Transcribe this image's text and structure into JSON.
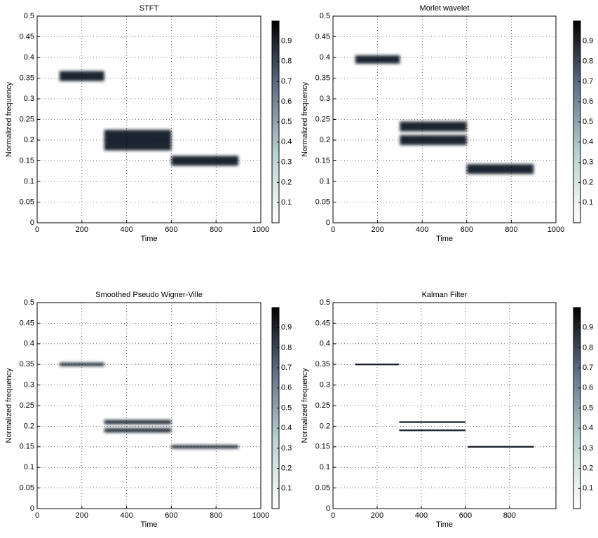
{
  "chart_data": [
    {
      "type": "spectrogram",
      "title": "STFT",
      "xlabel": "Time",
      "ylabel": "Normalized frequency",
      "color": "#1e2530",
      "xlim": [
        0,
        1000
      ],
      "xticks": [
        0,
        200,
        400,
        600,
        800,
        1000
      ],
      "ylim": [
        0,
        0.5
      ],
      "yticks": [
        0,
        0.05,
        0.1,
        0.15,
        0.2,
        0.25,
        0.3,
        0.35,
        0.4,
        0.45,
        0.5
      ],
      "clim": [
        0,
        1
      ],
      "cticks": [
        0.1,
        0.2,
        0.3,
        0.4,
        0.5,
        0.6,
        0.7,
        0.8,
        0.9
      ],
      "grid": true,
      "tracks": [
        {
          "start": 100,
          "end": 300,
          "freq": 0.355,
          "width": 0.012
        },
        {
          "start": 300,
          "end": 600,
          "freq": 0.2,
          "width": 0.025
        },
        {
          "start": 600,
          "end": 900,
          "freq": 0.15,
          "width": 0.012
        }
      ]
    },
    {
      "type": "spectrogram",
      "title": "Morlet wavelet",
      "xlabel": "Time",
      "ylabel": "Normalized frequency",
      "color": "#1e2530",
      "xlim": [
        0,
        1000
      ],
      "xticks": [
        0,
        200,
        400,
        600,
        800,
        1000
      ],
      "ylim": [
        0,
        0.5
      ],
      "yticks": [
        0,
        0.05,
        0.1,
        0.15,
        0.2,
        0.25,
        0.3,
        0.35,
        0.4,
        0.45,
        0.5
      ],
      "clim": [
        0,
        1
      ],
      "cticks": [
        0.1,
        0.2,
        0.3,
        0.4,
        0.5,
        0.6,
        0.7,
        0.8,
        0.9
      ],
      "grid": true,
      "tracks": [
        {
          "start": 100,
          "end": 300,
          "freq": 0.395,
          "width": 0.01
        },
        {
          "start": 300,
          "end": 600,
          "freq": 0.233,
          "width": 0.012
        },
        {
          "start": 300,
          "end": 600,
          "freq": 0.2,
          "width": 0.012
        },
        {
          "start": 600,
          "end": 900,
          "freq": 0.13,
          "width": 0.012
        }
      ]
    },
    {
      "type": "spectrogram",
      "title": "Smoothed Pseudo Wigner-Ville",
      "xlabel": "Time",
      "ylabel": "Normalized frequency",
      "color": "#1e2530",
      "xlim": [
        0,
        1000
      ],
      "xticks": [
        0,
        200,
        400,
        600,
        800,
        1000
      ],
      "ylim": [
        0,
        0.5
      ],
      "yticks": [
        0,
        0.05,
        0.1,
        0.15,
        0.2,
        0.25,
        0.3,
        0.35,
        0.4,
        0.45,
        0.5
      ],
      "clim": [
        0,
        1
      ],
      "cticks": [
        0.1,
        0.2,
        0.3,
        0.4,
        0.5,
        0.6,
        0.7,
        0.8,
        0.9
      ],
      "grid": true,
      "tracks": [
        {
          "start": 100,
          "end": 300,
          "freq": 0.35,
          "width": 0.004
        },
        {
          "start": 300,
          "end": 600,
          "freq": 0.21,
          "width": 0.005
        },
        {
          "start": 300,
          "end": 600,
          "freq": 0.19,
          "width": 0.005
        },
        {
          "start": 600,
          "end": 900,
          "freq": 0.15,
          "width": 0.004
        }
      ]
    },
    {
      "type": "spectrogram",
      "title": "Kalman Filter",
      "xlabel": "Time",
      "ylabel": "Normalized frequency",
      "color": "#1e2530",
      "xlim": [
        0,
        1010
      ],
      "xticks": [
        0,
        200,
        400,
        600,
        800
      ],
      "ylim": [
        0,
        0.5
      ],
      "yticks": [
        0,
        0.05,
        0.1,
        0.15,
        0.2,
        0.25,
        0.3,
        0.35,
        0.4,
        0.45,
        0.5
      ],
      "clim": [
        0,
        1
      ],
      "cticks": [
        0.1,
        0.2,
        0.3,
        0.4,
        0.5,
        0.6,
        0.7,
        0.8,
        0.9
      ],
      "grid": true,
      "tracks": [
        {
          "start": 100,
          "end": 300,
          "freq": 0.35,
          "width": 0.002
        },
        {
          "start": 300,
          "end": 600,
          "freq": 0.21,
          "width": 0.002
        },
        {
          "start": 300,
          "end": 600,
          "freq": 0.19,
          "width": 0.002
        },
        {
          "start": 610,
          "end": 910,
          "freq": 0.15,
          "width": 0.002
        }
      ]
    }
  ]
}
